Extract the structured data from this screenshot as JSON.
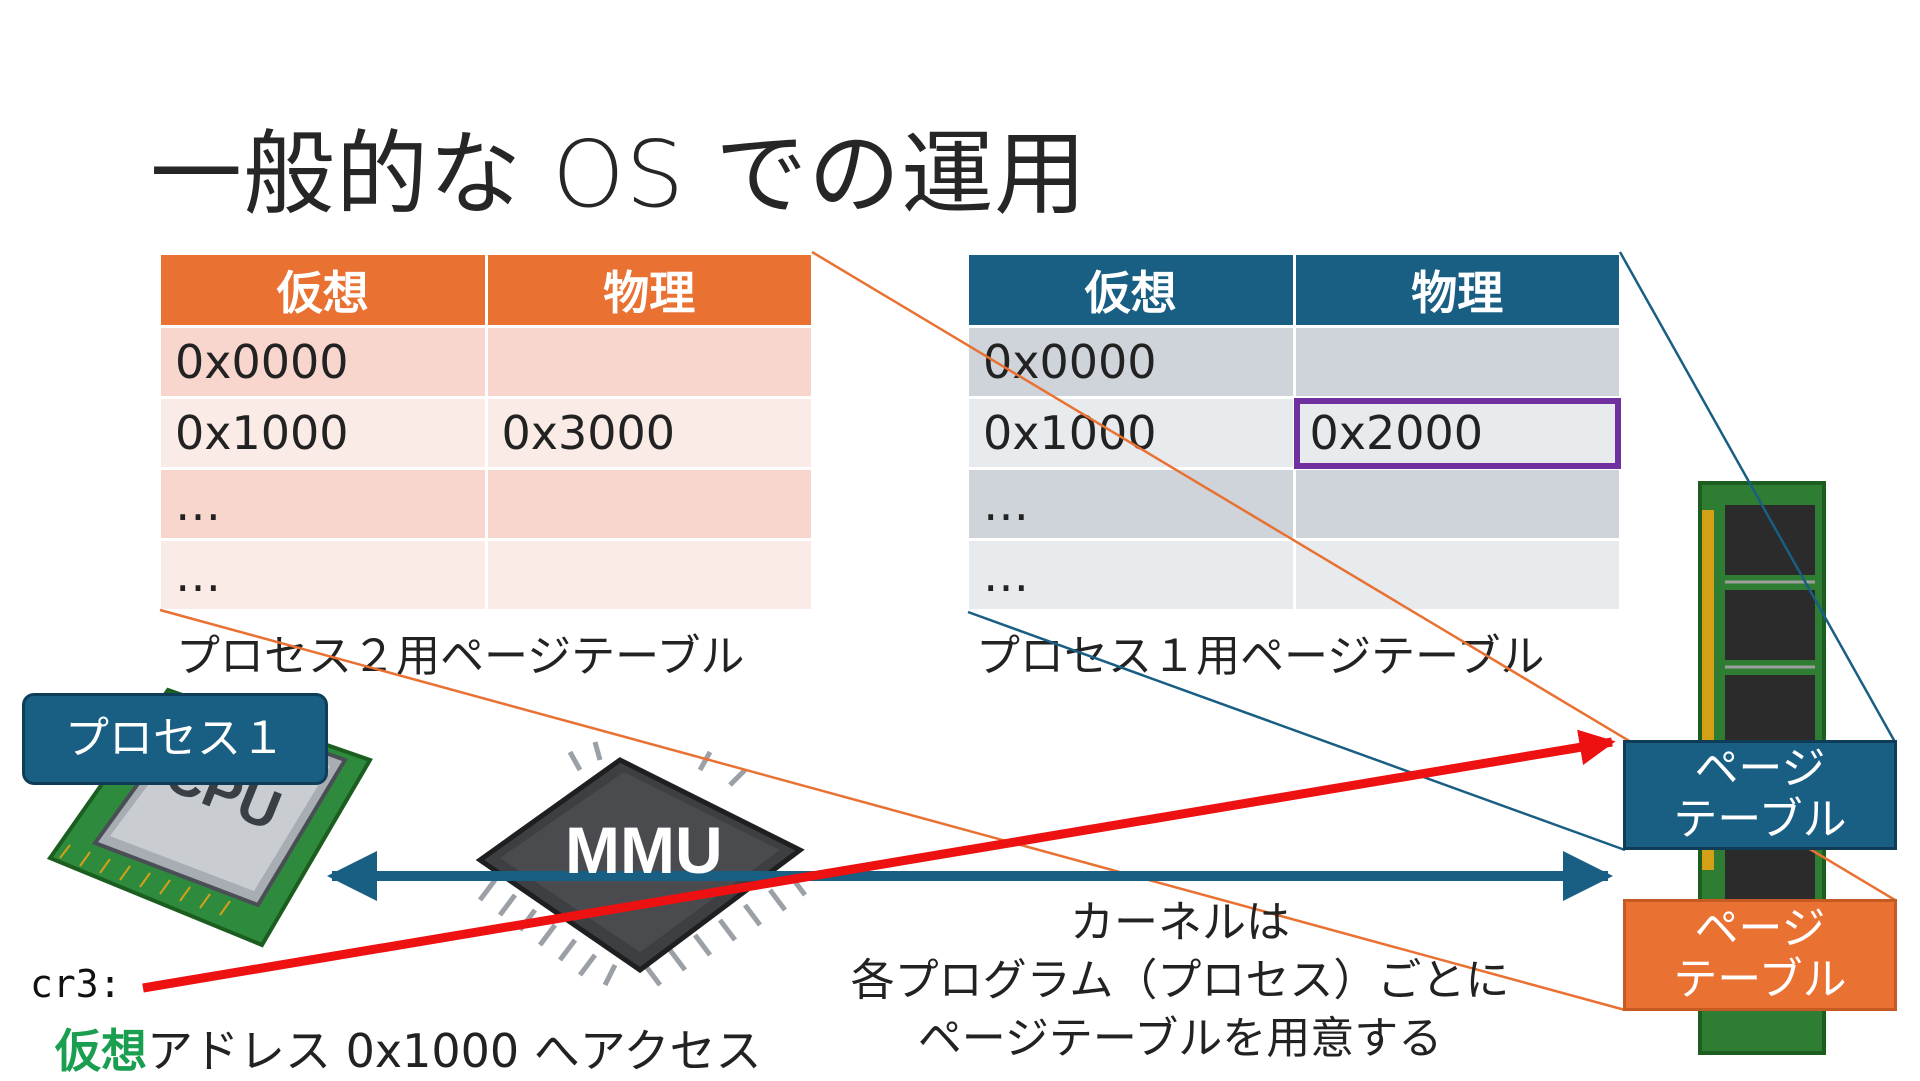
{
  "title": "一般的な OS での運用",
  "table2": {
    "caption": "プロセス２用ページテーブル",
    "headers": [
      "仮想",
      "物理"
    ],
    "rows": [
      [
        "0x0000",
        ""
      ],
      [
        "0x1000",
        "0x3000"
      ],
      [
        "…",
        ""
      ],
      [
        "…",
        ""
      ]
    ]
  },
  "table1": {
    "caption": "プロセス１用ページテーブル",
    "headers": [
      "仮想",
      "物理"
    ],
    "rows": [
      [
        "0x0000",
        ""
      ],
      [
        "0x1000",
        "0x2000"
      ],
      [
        "…",
        ""
      ],
      [
        "…",
        ""
      ]
    ]
  },
  "process_label": "プロセス１",
  "cpu_chip_text": "CPU",
  "mmu_label": "MMU",
  "memory": {
    "page_table_blue": [
      "ページ",
      "テーブル"
    ],
    "page_table_orange": [
      "ページ",
      "テーブル"
    ]
  },
  "kernel_note": [
    "カーネルは",
    "各プログラム（プロセス）ごとに",
    "ページテーブルを用意する"
  ],
  "cr3_label": "cr3:",
  "access": {
    "highlight": "仮想",
    "rest": "アドレス 0x1000 へアクセス"
  },
  "colors": {
    "orange": "#E97132",
    "blue": "#195E83",
    "red_arrow": "#EE1111",
    "highlight_box": "#7030A0",
    "green_text": "#1A9E50"
  }
}
